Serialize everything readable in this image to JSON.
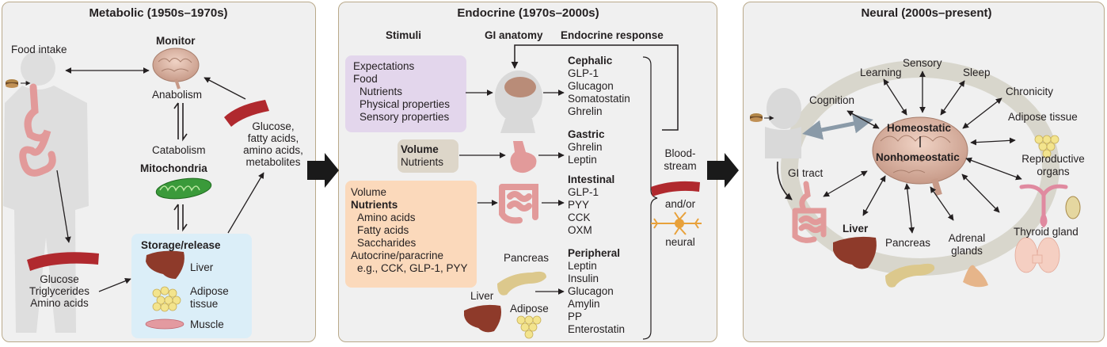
{
  "colors": {
    "panel_bg": "#f0f0f0",
    "panel_border": "#b9a98a",
    "stimuli_box": "#e3d6ec",
    "volume_box": "#ddd6c9",
    "nutrient_box": "#fbd9bb",
    "storage_box": "#dbeef8",
    "blood_vessel": "#b0292e",
    "brain": "#d8b3a3",
    "gut": "#e29a9a",
    "liver": "#8e3a2a",
    "pancreas": "#dcc88c",
    "mitochondria": "#3a9a3a",
    "adipose": "#f3e48d"
  },
  "metabolic": {
    "title": "Metabolic (1950s–1970s)",
    "food_intake": "Food intake",
    "monitor": "Monitor",
    "anabolism": "Anabolism",
    "catabolism": "Catabolism",
    "mitochondria": "Mitochondria",
    "blood_text": [
      "Glucose,",
      "fatty acids,",
      "amino acids,",
      "metabolites"
    ],
    "blood_left": [
      "Glucose",
      "Triglycerides",
      "Amino acids"
    ],
    "storage_title": "Storage/release",
    "liver": "Liver",
    "adipose": [
      "Adipose",
      "tissue"
    ],
    "muscle": "Muscle"
  },
  "endocrine": {
    "title": "Endocrine (1970s–2000s)",
    "col_stimuli": "Stimuli",
    "col_gi": "GI anatomy",
    "col_response": "Endocrine response",
    "stimuli_1": [
      "Expectations",
      "Food",
      "Nutrients",
      "Physical properties",
      "Sensory properties"
    ],
    "stimuli_2_bold": "Volume",
    "stimuli_2": "Nutrients",
    "stimuli_3_top": "Volume",
    "stimuli_3_bold": "Nutrients",
    "stimuli_3_items": [
      "Amino acids",
      "Fatty acids",
      "Saccharides"
    ],
    "stimuli_3_auto": "Autocrine/paracrine",
    "stimuli_3_eg": "e.g., CCK, GLP-1, PYY",
    "pancreas": "Pancreas",
    "liver": "Liver",
    "adipose": "Adipose",
    "cephalic_head": "Cephalic",
    "cephalic": [
      "GLP-1",
      "Glucagon",
      "Somatostatin",
      "Ghrelin"
    ],
    "gastric_head": "Gastric",
    "gastric": [
      "Ghrelin",
      "Leptin"
    ],
    "intestinal_head": "Intestinal",
    "intestinal": [
      "GLP-1",
      "PYY",
      "CCK",
      "OXM"
    ],
    "peripheral_head": "Peripheral",
    "peripheral": [
      "Leptin",
      "Insulin",
      "Glucagon",
      "Amylin",
      "PP",
      "Enterostatin"
    ],
    "bloodstream": [
      "Blood-",
      "stream"
    ],
    "andor": "and/or",
    "neural": "neural"
  },
  "neural": {
    "title": "Neural (2000s–present)",
    "learning": "Learning",
    "sensory": "Sensory",
    "sleep": "Sleep",
    "cognition": "Cognition",
    "chronicity": "Chronicity",
    "adipose": "Adipose tissue",
    "homeostatic": "Homeostatic",
    "nonhomeostatic": "Nonhomeostatic",
    "gi_tract": "GI tract",
    "reproductive": [
      "Reproductive",
      "organs"
    ],
    "liver": "Liver",
    "pancreas": "Pancreas",
    "adrenal": [
      "Adrenal",
      "glands"
    ],
    "thyroid": "Thyroid gland"
  }
}
